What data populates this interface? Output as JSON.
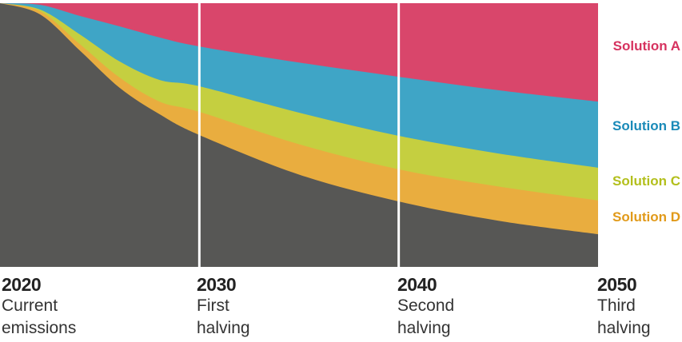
{
  "chart_data": {
    "type": "area",
    "stacked": true,
    "x": [
      2020,
      2022,
      2024,
      2026,
      2028,
      2030,
      2035,
      2040,
      2045,
      2050
    ],
    "ylim": [
      0,
      100
    ],
    "xlim": [
      2020,
      2050
    ],
    "grid": "vertical lines at 2030 and 2040",
    "legend": "right, labels aligned with series",
    "series": [
      {
        "key": "remaining",
        "color": "#575755",
        "values": [
          100,
          95.8,
          82.1,
          67.9,
          57.9,
          50,
          35,
          24.8,
          17.5,
          12.4
        ]
      },
      {
        "key": "D",
        "name": "Solution D",
        "color": "#e9ad3f",
        "label_color": "#e19a1a",
        "values": [
          0,
          1.2,
          2.4,
          3.9,
          4.8,
          8.8,
          11.5,
          12.2,
          13,
          12.8
        ]
      },
      {
        "key": "C",
        "name": "Solution C",
        "color": "#c5cf40",
        "label_color": "#b3bf1c",
        "values": [
          0,
          0.6,
          3.7,
          6.1,
          8.2,
          9.7,
          12,
          12.7,
          12.5,
          12.4
        ]
      },
      {
        "key": "B",
        "name": "Solution B",
        "color": "#3fa5c6",
        "label_color": "#1a8ab8",
        "values": [
          0,
          1.8,
          7,
          13.3,
          16.1,
          15.1,
          19,
          22.4,
          24,
          25.1
        ]
      },
      {
        "key": "A",
        "name": "Solution A",
        "color": "#d9466b",
        "label_color": "#d6325f",
        "values": [
          0,
          0.6,
          4.8,
          8.8,
          13,
          16.4,
          22.5,
          27.9,
          33,
          37.3
        ]
      }
    ],
    "x_labels": [
      {
        "year": "2020",
        "lines": [
          "Current",
          "emissions"
        ]
      },
      {
        "year": "2030",
        "lines": [
          "First",
          "halving"
        ]
      },
      {
        "year": "2040",
        "lines": [
          "Second",
          "halving"
        ]
      },
      {
        "year": "2050",
        "lines": [
          "Third",
          "halving"
        ]
      }
    ]
  }
}
